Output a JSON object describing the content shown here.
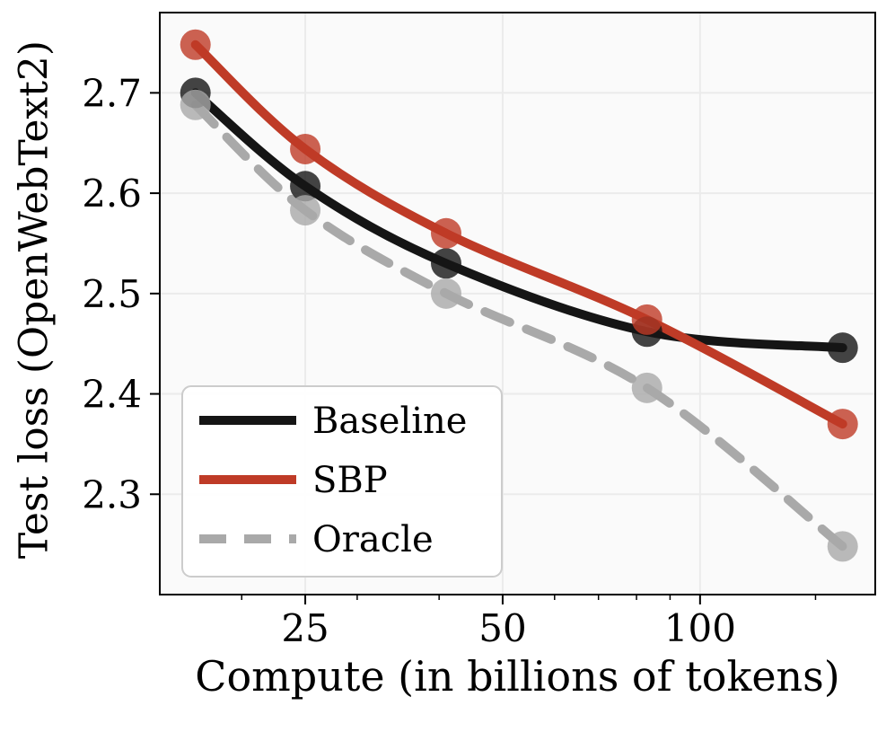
{
  "chart_data": {
    "type": "line",
    "title": "",
    "xlabel": "Compute (in billions of tokens)",
    "ylabel": "Test loss (OpenWebText2)",
    "x_scale": "log",
    "xlim": [
      15,
      185
    ],
    "ylim": [
      2.2,
      2.78
    ],
    "x": [
      17,
      25,
      41,
      83,
      165
    ],
    "x_ticks": [
      25,
      50,
      100
    ],
    "x_minor_ticks": [
      20,
      30,
      40,
      60,
      70,
      80,
      90,
      150
    ],
    "y_ticks": [
      2.3,
      2.4,
      2.5,
      2.6,
      2.7
    ],
    "grid": true,
    "legend_position": "lower left",
    "series": [
      {
        "name": "Baseline",
        "color": "#151515",
        "dash": null,
        "values": [
          2.7,
          2.607,
          2.53,
          2.462,
          2.446
        ]
      },
      {
        "name": "SBP",
        "color": "#bf3b27",
        "dash": null,
        "values": [
          2.748,
          2.644,
          2.56,
          2.474,
          2.37
        ]
      },
      {
        "name": "Oracle",
        "color": "#a9a9a9",
        "dash": [
          30,
          20
        ],
        "values": [
          2.688,
          2.583,
          2.5,
          2.406,
          2.248
        ]
      }
    ]
  },
  "style": {
    "plot_background": "#fafafa",
    "grid_color": "#ebebeb",
    "spine_color": "#000000",
    "tick_label_color": "#000000",
    "legend_border_color": "#cccccc",
    "legend_background": "#ffffff",
    "line_width": 10,
    "marker_radius": 17,
    "marker_opacity": 0.8
  }
}
